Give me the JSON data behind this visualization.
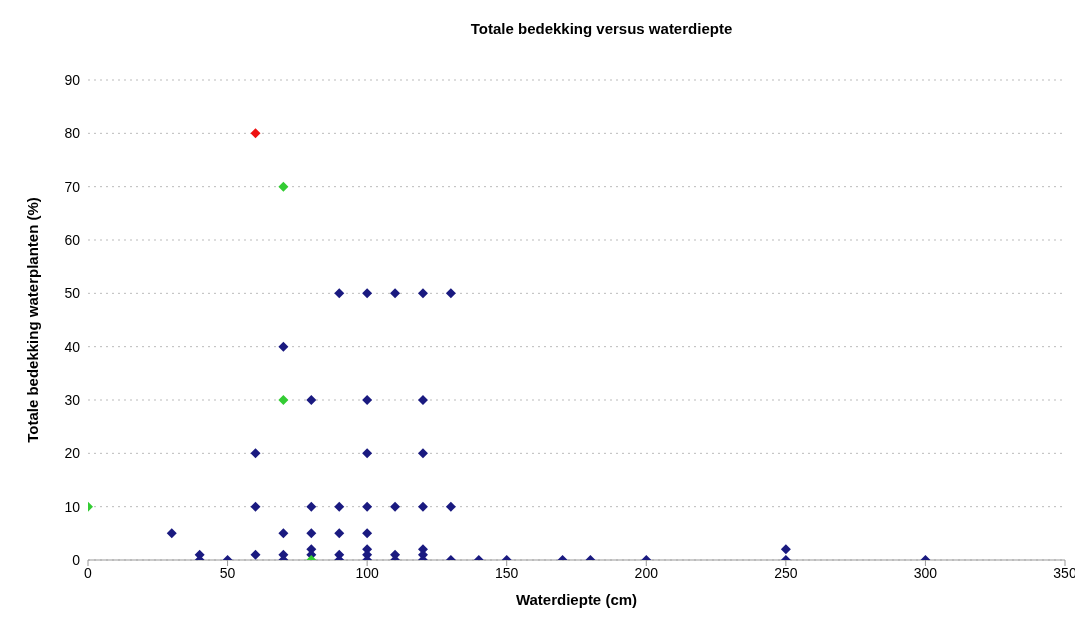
{
  "chart_data": {
    "type": "scatter",
    "title": "Totale bedekking versus waterdiepte",
    "xlabel": "Waterdiepte (cm)",
    "ylabel": "Totale bedekking waterplanten (%)",
    "xlim": [
      0,
      350
    ],
    "xticks": [
      0,
      50,
      100,
      150,
      200,
      250,
      300,
      350
    ],
    "ylim": [
      0,
      90
    ],
    "yticks": [
      0,
      10,
      20,
      30,
      40,
      50,
      60,
      70,
      80,
      90
    ],
    "grid": "y",
    "marker": "diamond",
    "legend": false,
    "series": [
      {
        "color": "#1a1a80",
        "x": [
          30,
          40,
          40,
          50,
          60,
          60,
          60,
          70,
          70,
          70,
          70,
          80,
          80,
          80,
          80,
          80,
          90,
          90,
          90,
          90,
          90,
          100,
          100,
          100,
          100,
          100,
          100,
          100,
          100,
          110,
          110,
          110,
          110,
          120,
          120,
          120,
          120,
          120,
          120,
          120,
          130,
          130,
          130,
          140,
          150,
          170,
          180,
          200,
          250,
          250,
          300
        ],
        "values": [
          5,
          1,
          0,
          0,
          20,
          10,
          1,
          40,
          5,
          1,
          0,
          30,
          10,
          5,
          2,
          1,
          50,
          10,
          5,
          1,
          0,
          50,
          30,
          20,
          10,
          5,
          2,
          1,
          0,
          50,
          10,
          1,
          0,
          50,
          30,
          20,
          10,
          2,
          1,
          0,
          50,
          10,
          0,
          0,
          0,
          0,
          0,
          0,
          2,
          0,
          0
        ]
      },
      {
        "color": "#33cc33",
        "x": [
          0,
          70,
          70,
          80
        ],
        "values": [
          10,
          70,
          30,
          0
        ]
      },
      {
        "color": "#ee1111",
        "x": [
          60
        ],
        "values": [
          80
        ]
      }
    ]
  }
}
